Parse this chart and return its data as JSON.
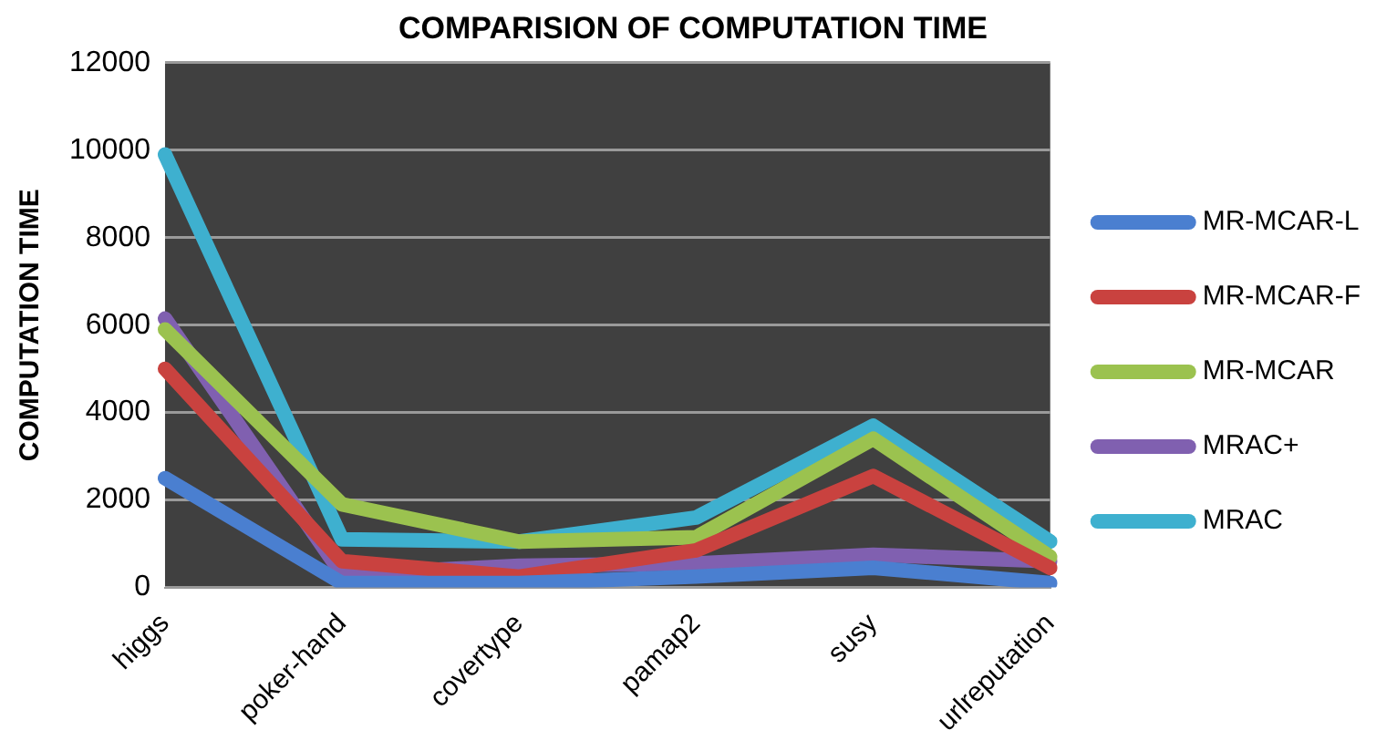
{
  "chart_data": {
    "type": "line",
    "title": "COMPARISION OF COMPUTATION TIME",
    "ylabel": "COMPUTATION TIME",
    "categories": [
      "higgs",
      "poker-hand",
      "covertype",
      "pamap2",
      "susy",
      "urlreputation"
    ],
    "series": [
      {
        "name": "MR-MCAR-L",
        "color": "#4a7fd0",
        "values": [
          2500,
          100,
          100,
          250,
          450,
          100
        ]
      },
      {
        "name": "MR-MCAR-F",
        "color": "#c9423f",
        "values": [
          5000,
          600,
          250,
          850,
          2550,
          450
        ]
      },
      {
        "name": "MR-MCAR",
        "color": "#9bc24f",
        "values": [
          5900,
          1900,
          1050,
          1150,
          3400,
          700
        ]
      },
      {
        "name": "MRAC+",
        "color": "#8060b0",
        "values": [
          6150,
          300,
          500,
          550,
          750,
          600
        ]
      },
      {
        "name": "MRAC",
        "color": "#3eb0cf",
        "values": [
          9900,
          1100,
          1050,
          1600,
          3700,
          1050
        ]
      }
    ],
    "ylim": [
      0,
      12000
    ],
    "yticks": [
      0,
      2000,
      4000,
      6000,
      8000,
      10000,
      12000
    ],
    "grid": "y",
    "legend": "right",
    "marker": "none",
    "line_style": "solid"
  }
}
